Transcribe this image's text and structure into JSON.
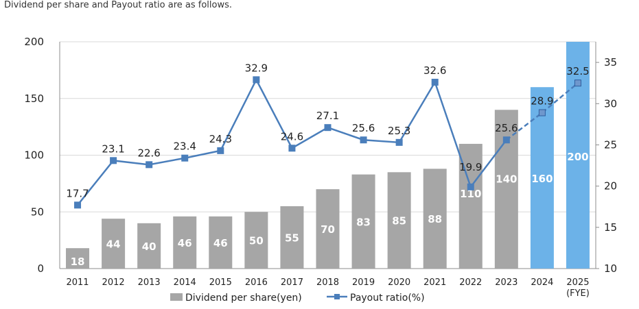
{
  "intro_text": "Dividend per share and Payout ratio are as follows.",
  "chart_data": {
    "type": "bar",
    "categories": [
      "2011",
      "2012",
      "2013",
      "2014",
      "2015",
      "2016",
      "2017",
      "2018",
      "2019",
      "2020",
      "2021",
      "2022",
      "2023",
      "2024",
      "2025"
    ],
    "category_sublabels": {
      "2025": "(FYE)"
    },
    "series": [
      {
        "name": "Dividend per share(yen)",
        "type": "bar",
        "axis": "left",
        "values": [
          18,
          44,
          40,
          46,
          46,
          50,
          55,
          70,
          83,
          85,
          88,
          110,
          140,
          160,
          200
        ],
        "labels": [
          "18",
          "44",
          "40",
          "46",
          "46",
          "50",
          "55",
          "70",
          "83",
          "85",
          "88",
          "110",
          "140",
          "160",
          "200"
        ],
        "forecast_from_index": 13
      },
      {
        "name": "Payout ratio(%)",
        "type": "line",
        "axis": "right",
        "values": [
          17.7,
          23.1,
          22.6,
          23.4,
          24.3,
          32.9,
          24.6,
          27.1,
          25.6,
          25.3,
          32.6,
          19.9,
          25.6,
          28.9,
          32.5
        ],
        "labels": [
          "17.7",
          "23.1",
          "22.6",
          "23.4",
          "24.3",
          "32.9",
          "24.6",
          "27.1",
          "25.6",
          "25.3",
          "32.6",
          "19.9",
          "25.6",
          "28.9",
          "32.5"
        ],
        "dashed_from_index": 12
      }
    ],
    "y_left": {
      "min": 0,
      "max": 200,
      "ticks": [
        "0",
        "50",
        "100",
        "150",
        "200"
      ]
    },
    "y_right": {
      "min": 10,
      "max": 37.5,
      "ticks": [
        "10",
        "15",
        "20",
        "25",
        "30",
        "35"
      ]
    },
    "legend": {
      "position": "bottom",
      "items": [
        "Dividend per share(yen)",
        "Payout ratio(%)"
      ]
    },
    "colors": {
      "bar_actual": "#A6A6A6",
      "bar_forecast": "#6CB2E8",
      "line": "#4A7EBB",
      "grid": "#D9D9D9"
    }
  }
}
